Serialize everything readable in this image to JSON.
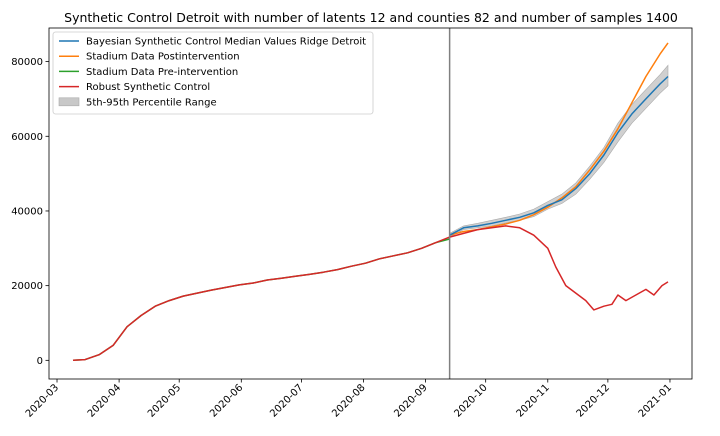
{
  "chart_data": {
    "type": "line",
    "title": "Synthetic Control Detroit with number of latents 12 and counties 82 and number of samples 1400",
    "xlabel": "",
    "ylabel": "",
    "x_start": "2020-03-09",
    "x_end": "2020-12-31",
    "xlim": [
      "2020-02-26",
      "2021-01-12"
    ],
    "ylim": [
      -5000,
      89000
    ],
    "intervention_date": "2020-09-13",
    "x_ticks": [
      "2020-03",
      "2020-04",
      "2020-05",
      "2020-06",
      "2020-07",
      "2020-08",
      "2020-09",
      "2020-10",
      "2020-11",
      "2020-12",
      "2021-01"
    ],
    "y_ticks": [
      0,
      20000,
      40000,
      60000,
      80000
    ],
    "legend_position": "top-left",
    "grid": false,
    "legend": [
      {
        "label": "Bayesian Synthetic Control Median Values Ridge Detroit",
        "color": "#1f77b4",
        "kind": "line"
      },
      {
        "label": "Stadium Data Postintervention",
        "color": "#ff7f0e",
        "kind": "line"
      },
      {
        "label": "Stadium Data Pre-intervention",
        "color": "#2ca02c",
        "kind": "line"
      },
      {
        "label": "Robust Synthetic Control",
        "color": "#d62728",
        "kind": "line"
      },
      {
        "label": "5th-95th Percentile Range",
        "color": "#c8c8c8",
        "kind": "patch"
      }
    ],
    "series": [
      {
        "name": "Stadium Data Pre-intervention",
        "color": "#2ca02c",
        "points": [
          [
            "2020-03-09",
            0
          ],
          [
            "2020-03-15",
            200
          ],
          [
            "2020-03-22",
            1500
          ],
          [
            "2020-03-29",
            4000
          ],
          [
            "2020-04-05",
            9000
          ],
          [
            "2020-04-12",
            12000
          ],
          [
            "2020-04-19",
            14500
          ],
          [
            "2020-04-26",
            16000
          ],
          [
            "2020-05-03",
            17200
          ],
          [
            "2020-05-10",
            18000
          ],
          [
            "2020-05-17",
            18800
          ],
          [
            "2020-05-24",
            19500
          ],
          [
            "2020-05-31",
            20200
          ],
          [
            "2020-06-07",
            20700
          ],
          [
            "2020-06-14",
            21500
          ],
          [
            "2020-06-21",
            22000
          ],
          [
            "2020-06-28",
            22500
          ],
          [
            "2020-07-05",
            23000
          ],
          [
            "2020-07-12",
            23600
          ],
          [
            "2020-07-19",
            24300
          ],
          [
            "2020-07-26",
            25200
          ],
          [
            "2020-08-02",
            26000
          ],
          [
            "2020-08-09",
            27200
          ],
          [
            "2020-08-16",
            28000
          ],
          [
            "2020-08-23",
            28800
          ],
          [
            "2020-08-30",
            30000
          ],
          [
            "2020-09-06",
            31500
          ],
          [
            "2020-09-13",
            32500
          ]
        ]
      },
      {
        "name": "Stadium Data Postintervention",
        "color": "#ff7f0e",
        "points": [
          [
            "2020-09-13",
            33500
          ],
          [
            "2020-09-20",
            34500
          ],
          [
            "2020-09-27",
            35000
          ],
          [
            "2020-10-04",
            35800
          ],
          [
            "2020-10-11",
            36500
          ],
          [
            "2020-10-18",
            37500
          ],
          [
            "2020-10-25",
            39000
          ],
          [
            "2020-11-01",
            41000
          ],
          [
            "2020-11-08",
            43500
          ],
          [
            "2020-11-15",
            46500
          ],
          [
            "2020-11-22",
            51000
          ],
          [
            "2020-11-29",
            56000
          ],
          [
            "2020-12-06",
            62000
          ],
          [
            "2020-12-13",
            69000
          ],
          [
            "2020-12-20",
            76000
          ],
          [
            "2020-12-27",
            82000
          ],
          [
            "2020-12-31",
            85000
          ]
        ]
      },
      {
        "name": "Bayesian Synthetic Control Median Values Ridge Detroit",
        "color": "#1f77b4",
        "points": [
          [
            "2020-09-13",
            33500
          ],
          [
            "2020-09-20",
            35500
          ],
          [
            "2020-09-27",
            36000
          ],
          [
            "2020-10-04",
            36700
          ],
          [
            "2020-10-11",
            37500
          ],
          [
            "2020-10-18",
            38300
          ],
          [
            "2020-10-25",
            39500
          ],
          [
            "2020-11-01",
            41500
          ],
          [
            "2020-11-08",
            43000
          ],
          [
            "2020-11-15",
            46000
          ],
          [
            "2020-11-22",
            50000
          ],
          [
            "2020-11-29",
            55000
          ],
          [
            "2020-12-06",
            61000
          ],
          [
            "2020-12-13",
            66000
          ],
          [
            "2020-12-20",
            70000
          ],
          [
            "2020-12-27",
            74000
          ],
          [
            "2020-12-31",
            76000
          ]
        ]
      },
      {
        "name": "Robust Synthetic Control",
        "color": "#d62728",
        "points": [
          [
            "2020-03-09",
            0
          ],
          [
            "2020-03-15",
            200
          ],
          [
            "2020-03-22",
            1500
          ],
          [
            "2020-03-29",
            4000
          ],
          [
            "2020-04-05",
            9000
          ],
          [
            "2020-04-12",
            12000
          ],
          [
            "2020-04-19",
            14500
          ],
          [
            "2020-04-26",
            16000
          ],
          [
            "2020-05-03",
            17200
          ],
          [
            "2020-05-10",
            18000
          ],
          [
            "2020-05-17",
            18800
          ],
          [
            "2020-05-24",
            19500
          ],
          [
            "2020-05-31",
            20200
          ],
          [
            "2020-06-07",
            20700
          ],
          [
            "2020-06-14",
            21500
          ],
          [
            "2020-06-21",
            22000
          ],
          [
            "2020-06-28",
            22500
          ],
          [
            "2020-07-05",
            23000
          ],
          [
            "2020-07-12",
            23600
          ],
          [
            "2020-07-19",
            24300
          ],
          [
            "2020-07-26",
            25200
          ],
          [
            "2020-08-02",
            26000
          ],
          [
            "2020-08-09",
            27200
          ],
          [
            "2020-08-16",
            28000
          ],
          [
            "2020-08-23",
            28800
          ],
          [
            "2020-08-30",
            30000
          ],
          [
            "2020-09-06",
            31500
          ],
          [
            "2020-09-13",
            33000
          ],
          [
            "2020-09-20",
            34000
          ],
          [
            "2020-09-27",
            35000
          ],
          [
            "2020-10-04",
            35500
          ],
          [
            "2020-10-11",
            36000
          ],
          [
            "2020-10-18",
            35500
          ],
          [
            "2020-10-25",
            33500
          ],
          [
            "2020-11-01",
            30000
          ],
          [
            "2020-11-05",
            25000
          ],
          [
            "2020-11-10",
            20000
          ],
          [
            "2020-11-15",
            18000
          ],
          [
            "2020-11-20",
            16000
          ],
          [
            "2020-11-24",
            13500
          ],
          [
            "2020-11-29",
            14500
          ],
          [
            "2020-12-03",
            15000
          ],
          [
            "2020-12-06",
            17500
          ],
          [
            "2020-12-10",
            16000
          ],
          [
            "2020-12-15",
            17500
          ],
          [
            "2020-12-20",
            19000
          ],
          [
            "2020-12-24",
            17500
          ],
          [
            "2020-12-28",
            20000
          ],
          [
            "2020-12-31",
            21000
          ]
        ]
      }
    ],
    "band": {
      "name": "5th-95th Percentile Range",
      "color": "#c8c8c8",
      "lower": [
        [
          "2020-09-13",
          33000
        ],
        [
          "2020-09-20",
          35000
        ],
        [
          "2020-09-27",
          35500
        ],
        [
          "2020-10-04",
          36000
        ],
        [
          "2020-10-11",
          36800
        ],
        [
          "2020-10-18",
          37500
        ],
        [
          "2020-10-25",
          38500
        ],
        [
          "2020-11-01",
          40500
        ],
        [
          "2020-11-08",
          42000
        ],
        [
          "2020-11-15",
          44500
        ],
        [
          "2020-11-22",
          48500
        ],
        [
          "2020-11-29",
          53000
        ],
        [
          "2020-12-06",
          58500
        ],
        [
          "2020-12-13",
          63500
        ],
        [
          "2020-12-20",
          67500
        ],
        [
          "2020-12-27",
          71500
        ],
        [
          "2020-12-31",
          73500
        ]
      ],
      "upper": [
        [
          "2020-09-13",
          34000
        ],
        [
          "2020-09-20",
          36000
        ],
        [
          "2020-09-27",
          36700
        ],
        [
          "2020-10-04",
          37500
        ],
        [
          "2020-10-11",
          38300
        ],
        [
          "2020-10-18",
          39200
        ],
        [
          "2020-10-25",
          40500
        ],
        [
          "2020-11-01",
          42500
        ],
        [
          "2020-11-08",
          44500
        ],
        [
          "2020-11-15",
          47500
        ],
        [
          "2020-11-22",
          52000
        ],
        [
          "2020-11-29",
          57000
        ],
        [
          "2020-12-06",
          63500
        ],
        [
          "2020-12-13",
          68500
        ],
        [
          "2020-12-20",
          72500
        ],
        [
          "2020-12-27",
          76500
        ],
        [
          "2020-12-31",
          79000
        ]
      ]
    }
  }
}
